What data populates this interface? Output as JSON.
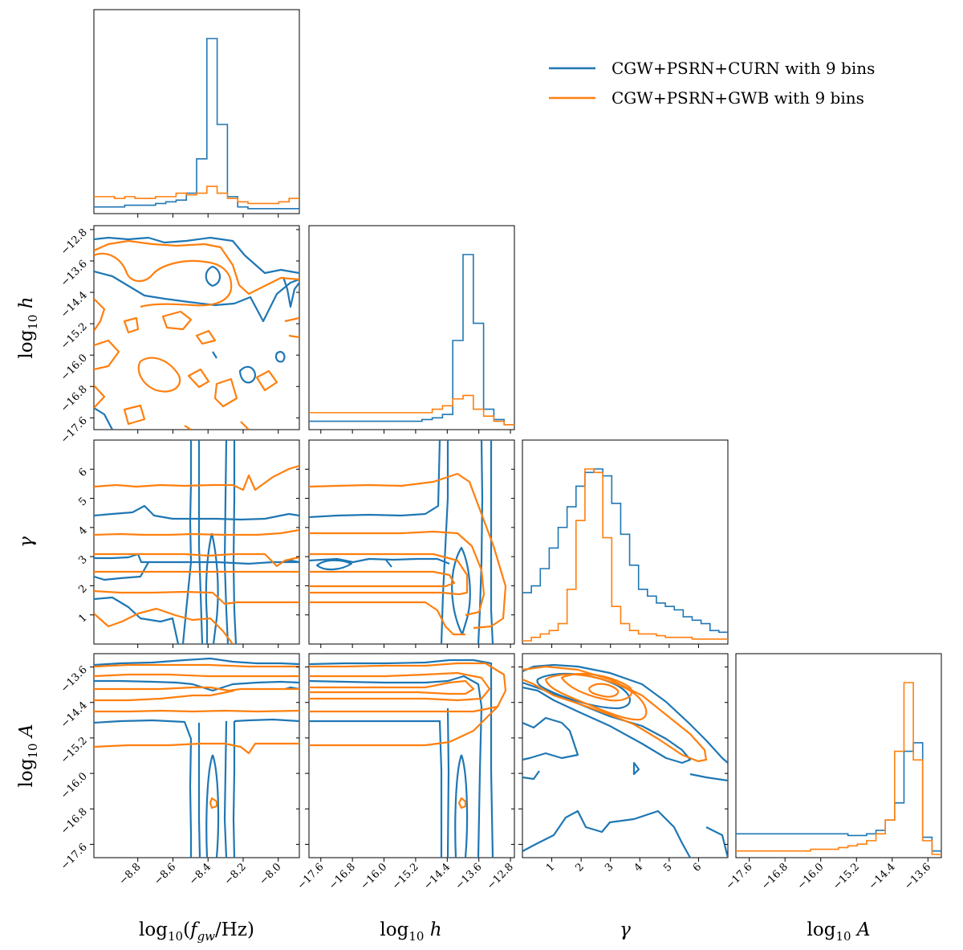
{
  "chart_data": {
    "type": "corner",
    "title": "",
    "parameters": [
      {
        "key": "f",
        "label": "log10(fgw/Hz)",
        "range": [
          -9.05,
          -7.88
        ],
        "ticks": [
          -8.8,
          -8.6,
          -8.4,
          -8.2,
          -8.0
        ],
        "tick_labels": [
          "−8.8",
          "−8.6",
          "−8.4",
          "−8.2",
          "−8.0"
        ]
      },
      {
        "key": "h",
        "label": "log10 h",
        "range": [
          -17.9,
          -12.7
        ],
        "ticks": [
          -17.6,
          -16.8,
          -16.0,
          -15.2,
          -14.4,
          -13.6,
          -12.8
        ],
        "tick_labels": [
          "−17.6",
          "−16.8",
          "−16.0",
          "−15.2",
          "−14.4",
          "−13.6",
          "−12.8"
        ]
      },
      {
        "key": "g",
        "label": "γ",
        "range": [
          0.0,
          7.0
        ],
        "ticks": [
          1,
          2,
          3,
          4,
          5,
          6
        ],
        "tick_labels": [
          "1",
          "2",
          "3",
          "4",
          "5",
          "6"
        ]
      },
      {
        "key": "A",
        "label": "log10 A",
        "range": [
          -17.9,
          -13.3
        ],
        "ticks": [
          -17.6,
          -16.8,
          -16.0,
          -15.2,
          -14.4,
          -13.6
        ],
        "tick_labels": [
          "−17.6",
          "−16.8",
          "−16.0",
          "−15.2",
          "−14.4",
          "−13.6"
        ]
      }
    ],
    "series": [
      {
        "name": "CGW+PSRN+CURN with 9 bins",
        "color": "#1f77b4",
        "hist": {
          "f": [
            0.02,
            0.02,
            0.02,
            0.03,
            0.03,
            0.03,
            0.04,
            0.05,
            0.06,
            0.1,
            0.3,
            1.0,
            0.5,
            0.08,
            0.02,
            0.01,
            0.01,
            0.01,
            0.01,
            0.01
          ],
          "h": [
            0.03,
            0.03,
            0.03,
            0.03,
            0.03,
            0.03,
            0.03,
            0.03,
            0.03,
            0.03,
            0.03,
            0.04,
            0.05,
            0.07,
            0.5,
            1.0,
            0.6,
            0.1,
            0.04,
            0.01
          ],
          "g": [
            0.28,
            0.32,
            0.42,
            0.54,
            0.66,
            0.78,
            0.9,
            0.98,
            1.0,
            0.96,
            0.8,
            0.62,
            0.44,
            0.3,
            0.26,
            0.22,
            0.2,
            0.18,
            0.14,
            0.12,
            0.1,
            0.06,
            0.05
          ],
          "A": [
            0.12,
            0.12,
            0.12,
            0.12,
            0.12,
            0.12,
            0.12,
            0.12,
            0.12,
            0.12,
            0.12,
            0.12,
            0.11,
            0.11,
            0.12,
            0.14,
            0.2,
            0.3,
            0.6,
            0.65,
            0.1,
            0.02
          ]
        },
        "contour_peaks": {
          "log10_fgw": -8.3,
          "log10_h": -14.0,
          "gamma": 2.3,
          "log10_A": -13.9
        }
      },
      {
        "name": "CGW+PSRN+GWB with 9 bins",
        "color": "#ff7f0e",
        "hist": {
          "f": [
            0.08,
            0.08,
            0.07,
            0.08,
            0.07,
            0.07,
            0.08,
            0.08,
            0.1,
            0.09,
            0.1,
            0.14,
            0.1,
            0.07,
            0.05,
            0.04,
            0.04,
            0.04,
            0.05,
            0.07
          ],
          "h": [
            0.08,
            0.08,
            0.08,
            0.08,
            0.08,
            0.08,
            0.08,
            0.08,
            0.08,
            0.08,
            0.08,
            0.08,
            0.1,
            0.12,
            0.16,
            0.18,
            0.1,
            0.06,
            0.03,
            0.01
          ],
          "g": [
            0.0,
            0.02,
            0.04,
            0.06,
            0.1,
            0.3,
            0.7,
            1.0,
            0.98,
            0.6,
            0.2,
            0.1,
            0.06,
            0.04,
            0.04,
            0.03,
            0.02,
            0.02,
            0.02,
            0.01,
            0.01,
            0.01,
            0.01
          ],
          "A": [
            0.02,
            0.02,
            0.02,
            0.02,
            0.02,
            0.02,
            0.02,
            0.02,
            0.03,
            0.03,
            0.03,
            0.04,
            0.05,
            0.06,
            0.08,
            0.12,
            0.2,
            0.6,
            1.0,
            0.55,
            0.08,
            0.0
          ]
        },
        "contour_peaks": {
          "log10_fgw": null,
          "log10_h": -14.1,
          "gamma": 2.6,
          "log10_A": -13.8
        }
      }
    ],
    "legend_position": "top-right"
  }
}
